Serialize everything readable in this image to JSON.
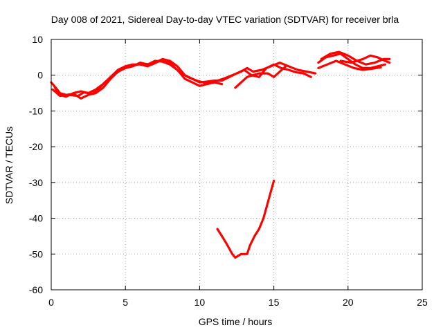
{
  "chart_data": {
    "type": "line",
    "title": "Day 008 of 2021, Sidereal Day-to-day VTEC variation (SDTVAR) for receiver brla",
    "xlabel": "GPS time / hours",
    "ylabel": "SDTVAR / TECUs",
    "xlim": [
      0,
      25
    ],
    "ylim": [
      -60,
      10
    ],
    "xticks": [
      0,
      5,
      10,
      15,
      20,
      25
    ],
    "yticks": [
      10,
      0,
      -10,
      -20,
      -30,
      -40,
      -50,
      -60
    ],
    "grid": true,
    "color": "#ff0000",
    "series": [
      {
        "name": "track-1",
        "points": [
          [
            0.0,
            -2.0
          ],
          [
            0.3,
            -3.5
          ],
          [
            0.6,
            -5.0
          ],
          [
            1.0,
            -5.5
          ],
          [
            1.5,
            -5.2
          ],
          [
            2.0,
            -6.5
          ],
          [
            2.5,
            -5.5
          ],
          [
            3.0,
            -5.0
          ],
          [
            3.5,
            -3.5
          ],
          [
            4.0,
            -1.0
          ],
          [
            4.5,
            1.0
          ],
          [
            5.0,
            2.0
          ],
          [
            5.5,
            2.5
          ],
          [
            6.0,
            3.5
          ],
          [
            6.5,
            3.0
          ],
          [
            7.0,
            4.0
          ],
          [
            7.5,
            3.8
          ],
          [
            8.0,
            3.0
          ],
          [
            8.5,
            1.5
          ],
          [
            9.0,
            -1.0
          ],
          [
            9.5,
            -2.0
          ],
          [
            10.0,
            -3.0
          ],
          [
            10.5,
            -2.5
          ],
          [
            11.0,
            -2.0
          ],
          [
            11.5,
            -2.5
          ]
        ]
      },
      {
        "name": "track-2",
        "points": [
          [
            0.2,
            -3.0
          ],
          [
            0.5,
            -5.5
          ],
          [
            1.0,
            -6.0
          ],
          [
            1.5,
            -5.0
          ],
          [
            2.0,
            -4.5
          ],
          [
            2.5,
            -5.0
          ],
          [
            3.0,
            -4.0
          ],
          [
            3.5,
            -2.5
          ],
          [
            4.0,
            -0.5
          ],
          [
            4.5,
            1.5
          ],
          [
            5.0,
            2.5
          ],
          [
            5.5,
            3.0
          ],
          [
            6.0,
            3.0
          ],
          [
            6.5,
            2.5
          ],
          [
            7.0,
            3.5
          ],
          [
            7.5,
            4.5
          ],
          [
            8.0,
            4.0
          ],
          [
            8.5,
            2.5
          ],
          [
            9.0,
            0.0
          ],
          [
            9.5,
            -1.0
          ],
          [
            10.0,
            -2.0
          ],
          [
            10.5,
            -1.8
          ],
          [
            11.0,
            -1.5
          ],
          [
            11.5,
            -1.5
          ],
          [
            12.0,
            -0.5
          ],
          [
            12.5,
            0.5
          ],
          [
            13.0,
            1.5
          ],
          [
            13.5,
            0.0
          ],
          [
            14.0,
            -0.5
          ],
          [
            14.5,
            2.0
          ],
          [
            15.0,
            3.0
          ],
          [
            15.5,
            2.0
          ],
          [
            16.0,
            1.5
          ],
          [
            16.5,
            0.8
          ],
          [
            17.0,
            0.5
          ],
          [
            17.5,
            -0.5
          ]
        ]
      },
      {
        "name": "track-3",
        "points": [
          [
            0.1,
            -4.0
          ],
          [
            0.6,
            -5.8
          ],
          [
            1.2,
            -5.5
          ],
          [
            1.8,
            -5.8
          ],
          [
            2.2,
            -4.8
          ],
          [
            2.8,
            -5.2
          ],
          [
            3.2,
            -3.8
          ],
          [
            3.6,
            -2.0
          ],
          [
            4.2,
            0.0
          ],
          [
            4.8,
            1.8
          ],
          [
            5.4,
            2.5
          ],
          [
            6.0,
            3.2
          ],
          [
            6.8,
            3.0
          ],
          [
            7.4,
            4.2
          ],
          [
            8.0,
            3.5
          ],
          [
            8.6,
            1.0
          ],
          [
            9.2,
            -0.5
          ],
          [
            9.8,
            -1.5
          ],
          [
            10.4,
            -2.2
          ],
          [
            11.0,
            -1.8
          ],
          [
            11.6,
            -1.0
          ],
          [
            12.2,
            0.0
          ],
          [
            12.8,
            1.0
          ],
          [
            13.2,
            2.0
          ],
          [
            13.6,
            1.0
          ],
          [
            14.2,
            1.5
          ],
          [
            14.8,
            2.5
          ],
          [
            15.4,
            3.5
          ],
          [
            16.0,
            2.5
          ],
          [
            16.6,
            1.5
          ],
          [
            17.2,
            1.0
          ],
          [
            17.8,
            0.5
          ]
        ]
      },
      {
        "name": "track-4",
        "points": [
          [
            12.4,
            -3.5
          ],
          [
            12.8,
            -2.0
          ],
          [
            13.2,
            -0.5
          ],
          [
            13.6,
            0.0
          ],
          [
            14.0,
            0.5
          ],
          [
            14.6,
            0.5
          ],
          [
            15.0,
            -0.5
          ],
          [
            15.4,
            1.0
          ],
          [
            15.8,
            2.5
          ]
        ]
      },
      {
        "name": "track-5",
        "points": [
          [
            18.0,
            3.5
          ],
          [
            18.5,
            5.0
          ],
          [
            19.0,
            5.5
          ],
          [
            19.5,
            6.0
          ],
          [
            20.0,
            4.5
          ],
          [
            20.5,
            3.0
          ],
          [
            21.0,
            2.0
          ],
          [
            21.5,
            2.0
          ],
          [
            22.0,
            2.5
          ],
          [
            22.5,
            3.0
          ]
        ]
      },
      {
        "name": "track-6",
        "points": [
          [
            18.2,
            4.5
          ],
          [
            18.8,
            6.0
          ],
          [
            19.4,
            6.5
          ],
          [
            20.0,
            5.5
          ],
          [
            20.6,
            4.0
          ],
          [
            21.2,
            3.0
          ],
          [
            21.8,
            3.5
          ],
          [
            22.4,
            4.5
          ],
          [
            22.8,
            4.5
          ]
        ]
      },
      {
        "name": "track-7",
        "points": [
          [
            18.0,
            2.0
          ],
          [
            18.6,
            3.0
          ],
          [
            19.2,
            4.0
          ],
          [
            19.8,
            3.0
          ],
          [
            20.4,
            2.0
          ],
          [
            21.0,
            1.5
          ],
          [
            21.6,
            1.8
          ],
          [
            22.2,
            2.2
          ]
        ]
      },
      {
        "name": "track-8",
        "points": [
          [
            19.5,
            4.0
          ],
          [
            20.2,
            3.5
          ],
          [
            21.0,
            4.5
          ],
          [
            21.5,
            5.5
          ],
          [
            22.0,
            5.0
          ],
          [
            22.5,
            4.0
          ],
          [
            22.8,
            3.5
          ]
        ]
      },
      {
        "name": "track-9",
        "points": [
          [
            11.2,
            -43.0
          ],
          [
            11.5,
            -45.0
          ],
          [
            11.8,
            -47.0
          ],
          [
            12.0,
            -48.5
          ],
          [
            12.2,
            -50.0
          ],
          [
            12.4,
            -51.0
          ],
          [
            12.6,
            -50.5
          ],
          [
            12.8,
            -50.0
          ],
          [
            13.0,
            -50.0
          ],
          [
            13.2,
            -50.0
          ],
          [
            13.4,
            -47.5
          ],
          [
            13.7,
            -45.0
          ],
          [
            14.0,
            -43.0
          ],
          [
            14.3,
            -40.0
          ],
          [
            14.5,
            -37.0
          ],
          [
            14.7,
            -34.0
          ],
          [
            14.9,
            -31.0
          ],
          [
            15.0,
            -29.5
          ]
        ]
      }
    ]
  }
}
